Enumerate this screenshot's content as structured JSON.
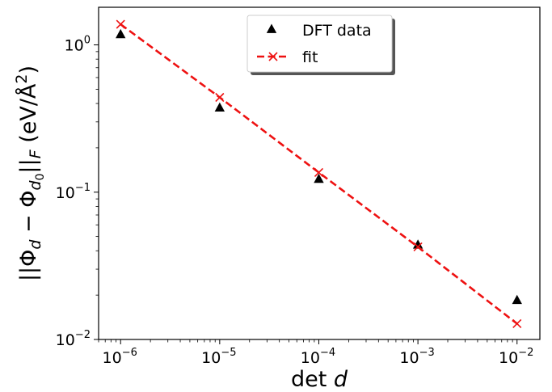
{
  "chart_data": {
    "type": "scatter",
    "xscale": "log",
    "yscale": "log",
    "xlim": [
      6e-07,
      0.017
    ],
    "ylim": [
      0.01,
      1.8
    ],
    "xticks": [
      1e-06,
      1e-05,
      0.0001,
      0.001,
      0.01
    ],
    "xtick_labels": [
      {
        "base": "10",
        "exp": "−6"
      },
      {
        "base": "10",
        "exp": "−5"
      },
      {
        "base": "10",
        "exp": "−4"
      },
      {
        "base": "10",
        "exp": "−3"
      },
      {
        "base": "10",
        "exp": "−2"
      }
    ],
    "yticks": [
      0.01,
      0.1,
      1
    ],
    "ytick_labels": [
      {
        "base": "10",
        "exp": "−2"
      },
      {
        "base": "10",
        "exp": "−1"
      },
      {
        "base": "10",
        "exp": "0"
      }
    ],
    "xlabel": {
      "prefix": "det ",
      "var": "d"
    },
    "ylabel": {
      "text": "||Φd − Φd0||F (eV/Å²)"
    },
    "grid": false,
    "legend": {
      "placement": "top-center",
      "shadow": true
    },
    "series": [
      {
        "name": "DFT data",
        "kind": "scatter",
        "marker": "triangle",
        "color": "#000000",
        "x": [
          1e-06,
          1e-05,
          0.0001,
          0.001,
          0.01
        ],
        "y": [
          1.18,
          0.375,
          0.123,
          0.044,
          0.0185
        ]
      },
      {
        "name": "fit",
        "kind": "line",
        "marker": "x",
        "linestyle": "dashed",
        "color": "#ee1111",
        "x": [
          1e-06,
          1e-05,
          0.0001,
          0.001,
          0.01
        ],
        "y": [
          1.38,
          0.44,
          0.136,
          0.0425,
          0.0128
        ]
      }
    ]
  }
}
